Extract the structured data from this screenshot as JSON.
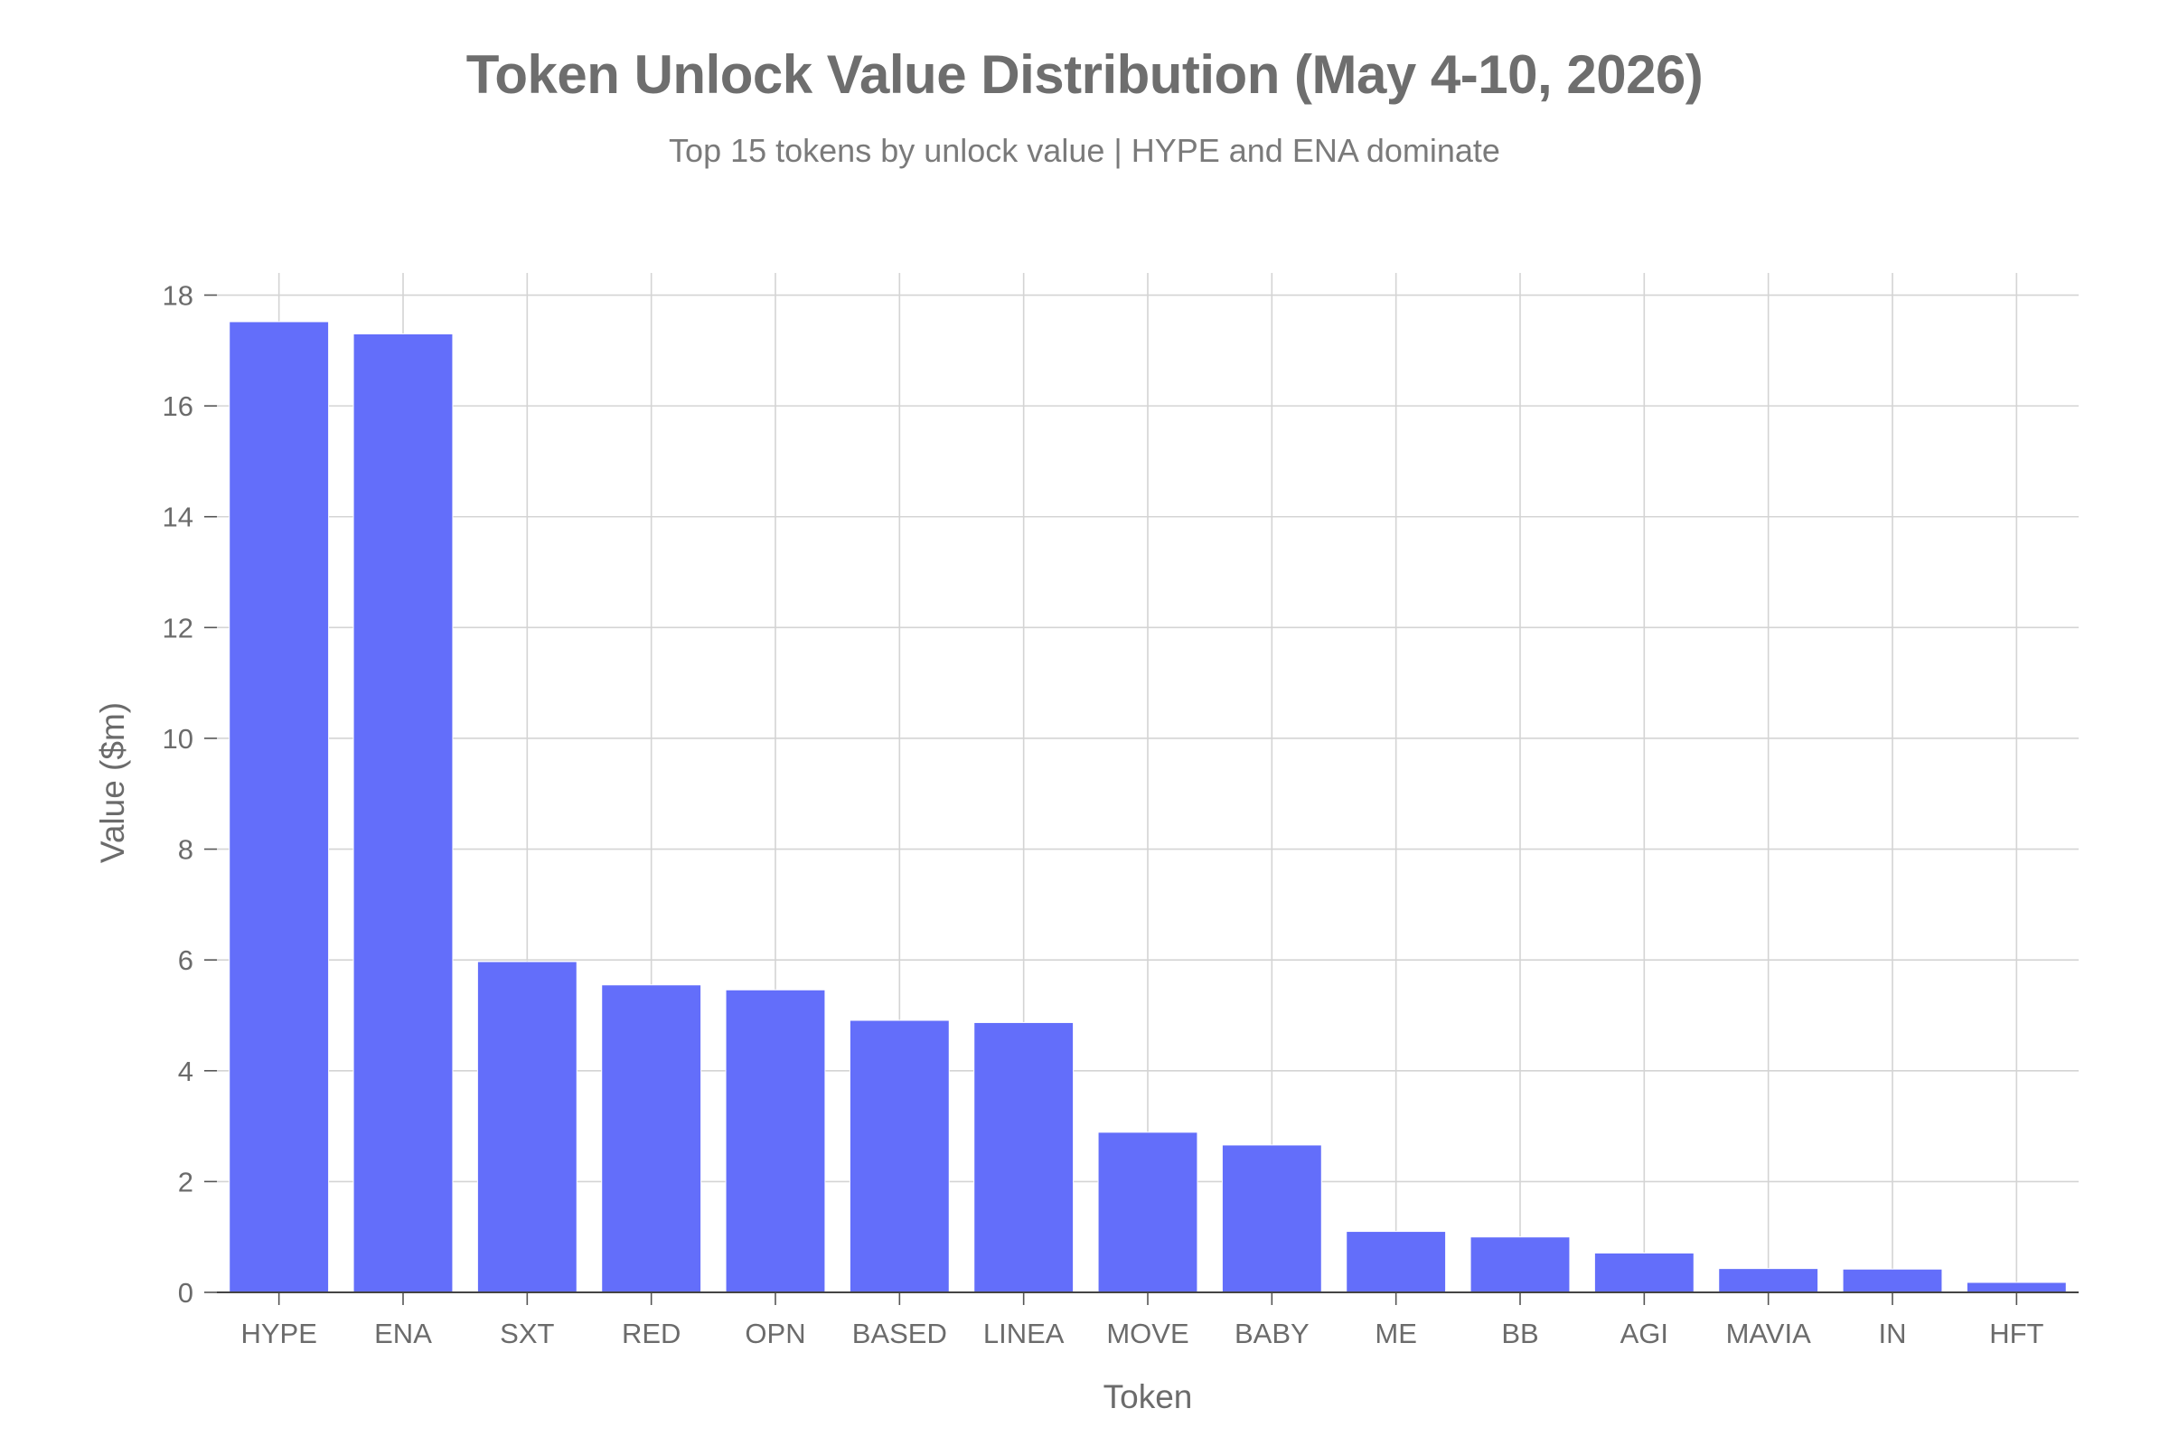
{
  "chart_data": {
    "type": "bar",
    "title": "Token Unlock Value Distribution (May 4-10, 2026)",
    "subtitle": "Top 15 tokens by unlock value | HYPE and ENA dominate",
    "xlabel": "Token",
    "ylabel": "Value ($m)",
    "categories": [
      "HYPE",
      "ENA",
      "SXT",
      "RED",
      "OPN",
      "BASED",
      "LINEA",
      "MOVE",
      "BABY",
      "ME",
      "BB",
      "AGI",
      "MAVIA",
      "IN",
      "HFT"
    ],
    "values": [
      17.52,
      17.3,
      5.97,
      5.55,
      5.46,
      4.91,
      4.87,
      2.89,
      2.66,
      1.1,
      1.0,
      0.71,
      0.43,
      0.42,
      0.18
    ],
    "ylim": [
      0,
      18.4
    ],
    "yticks": [
      0,
      2,
      4,
      6,
      8,
      10,
      12,
      14,
      16,
      18
    ],
    "bar_color": "#636efa",
    "grid": true,
    "legend": "none"
  }
}
